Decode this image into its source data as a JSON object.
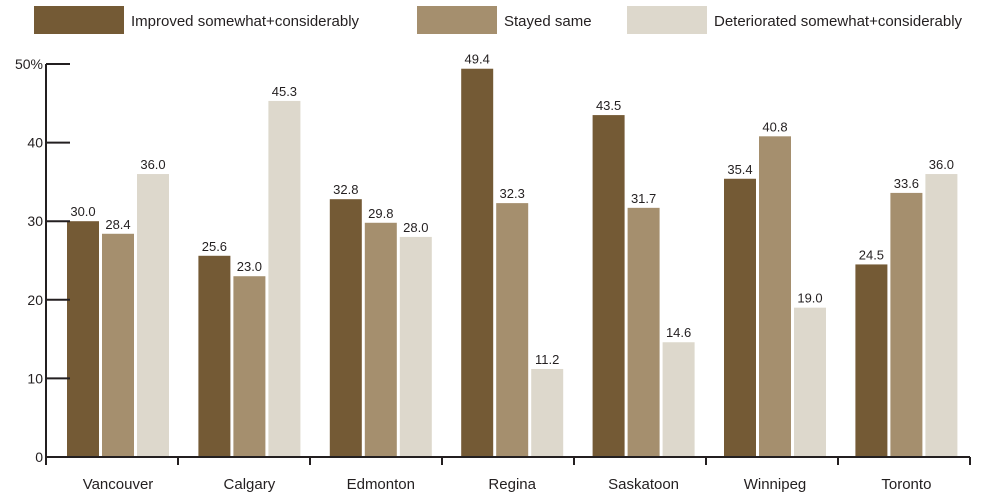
{
  "chart_data": {
    "type": "bar",
    "categories": [
      "Vancouver",
      "Calgary",
      "Edmonton",
      "Regina",
      "Saskatoon",
      "Winnipeg",
      "Toronto"
    ],
    "series": [
      {
        "name": "Improved somewhat+considerably",
        "color": "#745a35",
        "values": [
          30.0,
          25.6,
          32.8,
          49.4,
          43.5,
          35.4,
          24.5
        ]
      },
      {
        "name": "Stayed same",
        "color": "#a58f6e",
        "values": [
          28.4,
          23.0,
          29.8,
          32.3,
          31.7,
          40.8,
          33.6
        ]
      },
      {
        "name": "Deteriorated somewhat+considerably",
        "color": "#ddd8cc",
        "values": [
          36.0,
          45.3,
          28.0,
          11.2,
          14.6,
          19.0,
          36.0
        ]
      }
    ],
    "yticks": [
      0,
      10,
      20,
      30,
      40,
      50
    ],
    "ytick_labels": [
      "0",
      "10",
      "20",
      "30",
      "40",
      "50%"
    ],
    "ylim": [
      0,
      50
    ],
    "value_decimals": 1,
    "grid": false,
    "legend_position": "top"
  }
}
